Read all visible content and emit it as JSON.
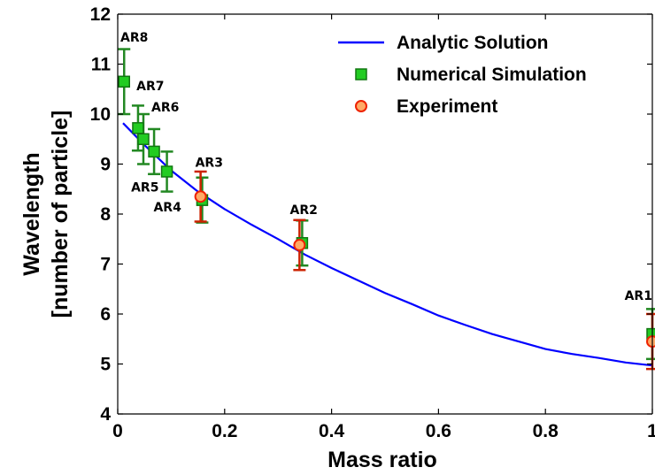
{
  "chart_data": {
    "type": "scatter",
    "title": "",
    "xlabel": "Mass ratio",
    "ylabel": [
      "Wavelength",
      "[number of particle]"
    ],
    "xlim": [
      0,
      1
    ],
    "ylim": [
      4,
      12
    ],
    "xticks": [
      "0",
      "0.2",
      "0.4",
      "0.6",
      "0.8",
      "1"
    ],
    "yticks": [
      "4",
      "5",
      "6",
      "7",
      "8",
      "9",
      "10",
      "11",
      "12"
    ],
    "grid": false,
    "legend_position": "top-right",
    "series": [
      {
        "name": "Analytic Solution",
        "kind": "line",
        "color": "#0000ff",
        "x": [
          0.01,
          0.05,
          0.1,
          0.15,
          0.2,
          0.25,
          0.3,
          0.35,
          0.4,
          0.45,
          0.5,
          0.55,
          0.6,
          0.65,
          0.7,
          0.75,
          0.8,
          0.85,
          0.9,
          0.95,
          1.0
        ],
        "y": [
          9.82,
          9.38,
          8.87,
          8.45,
          8.1,
          7.79,
          7.5,
          7.19,
          6.92,
          6.67,
          6.42,
          6.2,
          5.97,
          5.78,
          5.6,
          5.45,
          5.3,
          5.2,
          5.12,
          5.03,
          4.97
        ]
      },
      {
        "name": "Numerical Simulation",
        "kind": "marker",
        "marker": "square",
        "color": "#22cc22",
        "error_color": "#228822",
        "points": [
          {
            "label": "AR8",
            "x": 0.012,
            "y": 10.65,
            "err": 0.65
          },
          {
            "label": "AR7",
            "x": 0.038,
            "y": 9.72,
            "err": 0.45
          },
          {
            "label": "AR6",
            "x": 0.048,
            "y": 9.5,
            "err": 0.5
          },
          {
            "label": "AR5",
            "x": 0.068,
            "y": 9.25,
            "err": 0.45
          },
          {
            "label": "AR4",
            "x": 0.092,
            "y": 8.85,
            "err": 0.4
          },
          {
            "label": "AR3",
            "x": 0.158,
            "y": 8.28,
            "err": 0.45
          },
          {
            "label": "AR2",
            "x": 0.345,
            "y": 7.42,
            "err": 0.45
          },
          {
            "label": "AR1",
            "x": 1.0,
            "y": 5.6,
            "err": 0.5
          }
        ]
      },
      {
        "name": "Experiment",
        "kind": "marker",
        "marker": "circle",
        "color": "#ffaa66",
        "edge_color": "#ee2200",
        "error_color": "#cc2200",
        "points": [
          {
            "x": 0.155,
            "y": 8.35,
            "err": 0.5
          },
          {
            "x": 0.34,
            "y": 7.38,
            "err": 0.5
          },
          {
            "x": 1.0,
            "y": 5.45,
            "err": 0.55
          }
        ]
      }
    ],
    "point_labels": [
      {
        "text": "AR8",
        "x": 0.005,
        "y": 11.45
      },
      {
        "text": "AR7",
        "x": 0.035,
        "y": 10.48
      },
      {
        "text": "AR6",
        "x": 0.063,
        "y": 10.05
      },
      {
        "text": "AR5",
        "x": 0.025,
        "y": 8.45
      },
      {
        "text": "AR4",
        "x": 0.067,
        "y": 8.05
      },
      {
        "text": "AR3",
        "x": 0.145,
        "y": 8.95
      },
      {
        "text": "AR2",
        "x": 0.322,
        "y": 8.0
      },
      {
        "text": "AR1",
        "x": 0.948,
        "y": 6.28
      }
    ]
  }
}
